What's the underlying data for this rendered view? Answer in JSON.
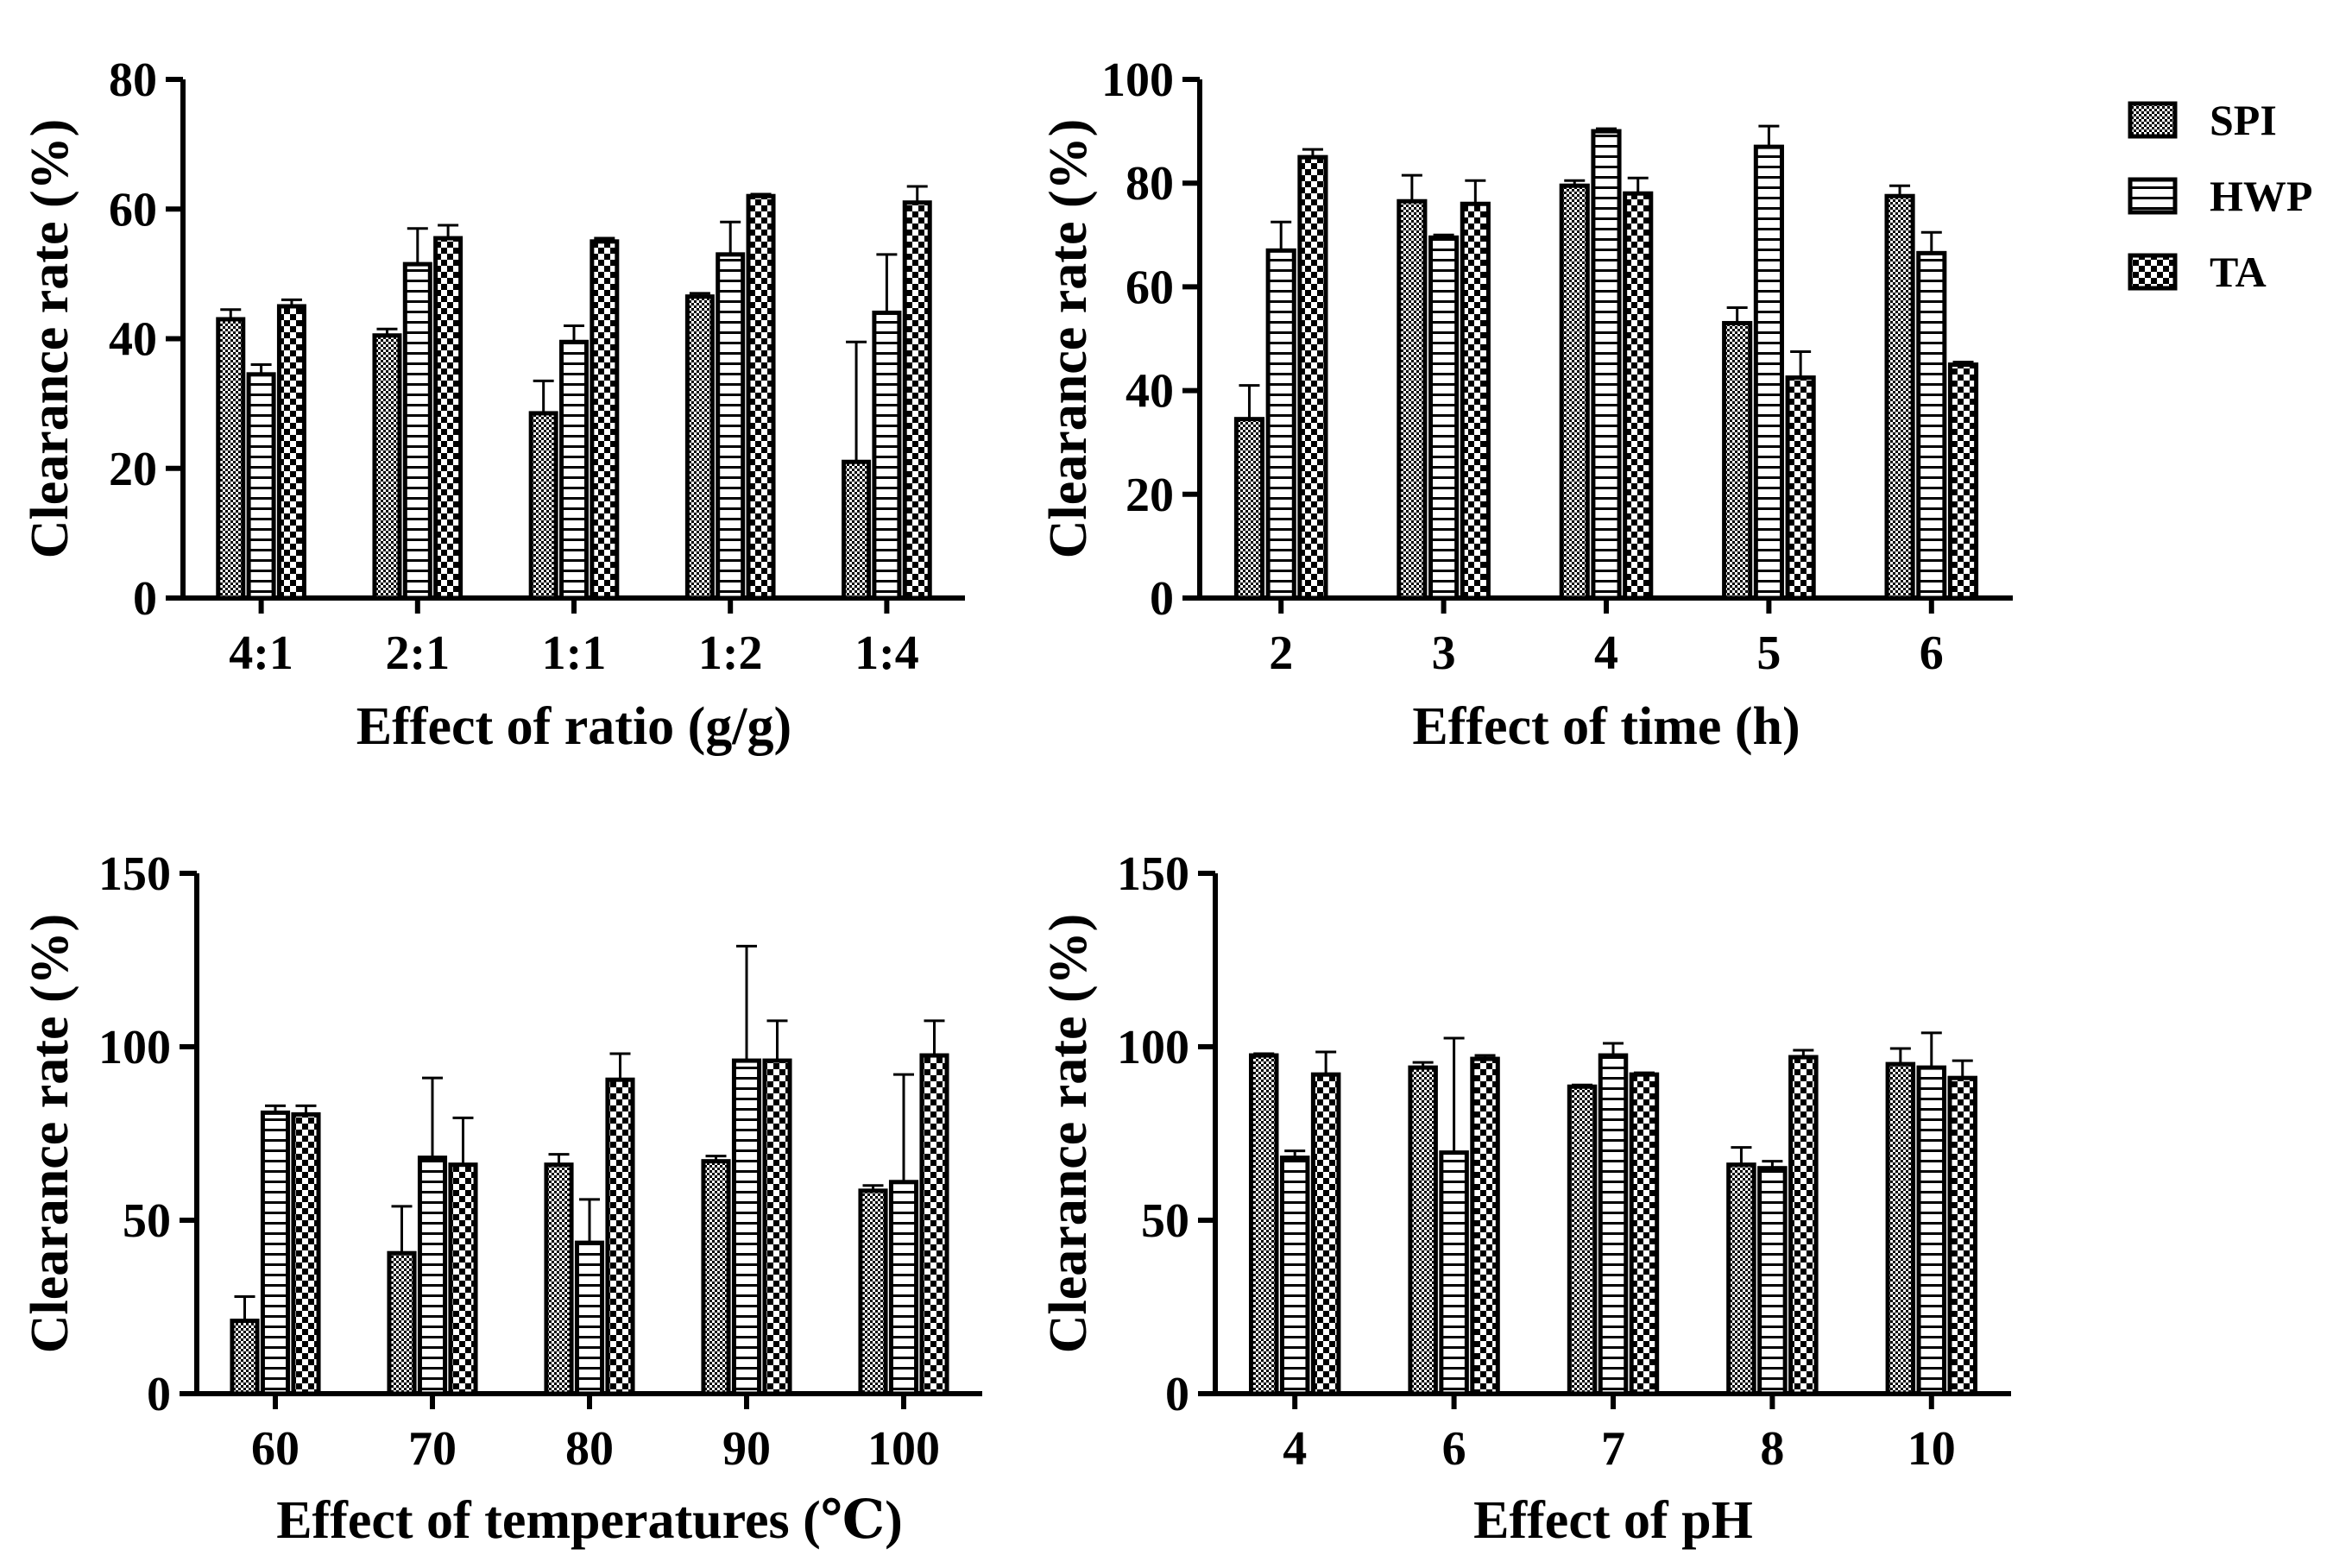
{
  "legend": [
    {
      "name": "SPI",
      "pattern": "checker"
    },
    {
      "name": "HWP",
      "pattern": "hlines"
    },
    {
      "name": "TA",
      "pattern": "bigchecker"
    }
  ],
  "chart_data": [
    {
      "type": "bar",
      "title": "",
      "xlabel": "Effect of ratio (g/g)",
      "ylabel": "Clearance rate (%)",
      "ylim": [
        0,
        80
      ],
      "yticks": [
        0,
        20,
        40,
        60,
        80
      ],
      "categories": [
        "4:1",
        "2:1",
        "1:1",
        "1:2",
        "1:4"
      ],
      "series": [
        {
          "name": "SPI",
          "values": [
            43,
            40.5,
            28.5,
            46.5,
            21
          ],
          "errors": [
            1.5,
            1,
            5,
            0.5,
            18.5
          ]
        },
        {
          "name": "HWP",
          "values": [
            34.5,
            51.5,
            39.5,
            53,
            44
          ],
          "errors": [
            1.5,
            5.5,
            2.5,
            5,
            9
          ]
        },
        {
          "name": "TA",
          "values": [
            45,
            55.5,
            55,
            62,
            61
          ],
          "errors": [
            1,
            2,
            0.5,
            0.3,
            2.5
          ]
        }
      ]
    },
    {
      "type": "bar",
      "title": "",
      "xlabel": "Effect of time (h)",
      "ylabel": "Clearance rate (%)",
      "ylim": [
        0,
        100
      ],
      "yticks": [
        0,
        20,
        40,
        60,
        80,
        100
      ],
      "categories": [
        "2",
        "3",
        "4",
        "5",
        "6"
      ],
      "series": [
        {
          "name": "SPI",
          "values": [
            34.5,
            76.5,
            79.5,
            53,
            77.5
          ],
          "errors": [
            6.5,
            5,
            1,
            3,
            2
          ]
        },
        {
          "name": "HWP",
          "values": [
            67,
            69.5,
            90,
            87,
            66.5
          ],
          "errors": [
            5.5,
            0.5,
            0.5,
            4,
            4
          ]
        },
        {
          "name": "TA",
          "values": [
            85,
            76,
            78,
            42.5,
            45
          ],
          "errors": [
            1.5,
            4.5,
            3,
            5,
            0.5
          ]
        }
      ]
    },
    {
      "type": "bar",
      "title": "",
      "xlabel": "Effect of temperatures (℃)",
      "ylabel": "Clearance rate (%)",
      "ylim": [
        0,
        150
      ],
      "yticks": [
        0,
        50,
        100,
        150
      ],
      "categories": [
        "60",
        "70",
        "80",
        "90",
        "100"
      ],
      "series": [
        {
          "name": "SPI",
          "values": [
            21,
            40.5,
            66,
            67,
            58.5
          ],
          "errors": [
            7,
            13.5,
            3,
            1.5,
            1.5
          ]
        },
        {
          "name": "HWP",
          "values": [
            81,
            68,
            43.5,
            96,
            61
          ],
          "errors": [
            2,
            23,
            12.5,
            33,
            31
          ]
        },
        {
          "name": "TA",
          "values": [
            80.5,
            66,
            90.5,
            96,
            97.5
          ],
          "errors": [
            2.5,
            13.5,
            7.5,
            11.5,
            10
          ]
        }
      ]
    },
    {
      "type": "bar",
      "title": "",
      "xlabel": "Effect of pH",
      "ylabel": "Clearance rate (%)",
      "ylim": [
        0,
        150
      ],
      "yticks": [
        0,
        50,
        100,
        150
      ],
      "categories": [
        "4",
        "6",
        "7",
        "8",
        "10"
      ],
      "series": [
        {
          "name": "SPI",
          "values": [
            97.5,
            94,
            88.5,
            66,
            95
          ],
          "errors": [
            0.5,
            1.5,
            0.5,
            5,
            4.5
          ]
        },
        {
          "name": "HWP",
          "values": [
            68,
            69.5,
            97.5,
            65,
            94
          ],
          "errors": [
            2,
            33,
            3.5,
            2,
            10
          ]
        },
        {
          "name": "TA",
          "values": [
            92,
            96.5,
            92,
            97,
            91
          ],
          "errors": [
            6.5,
            1,
            0.5,
            2,
            5
          ]
        }
      ]
    }
  ]
}
